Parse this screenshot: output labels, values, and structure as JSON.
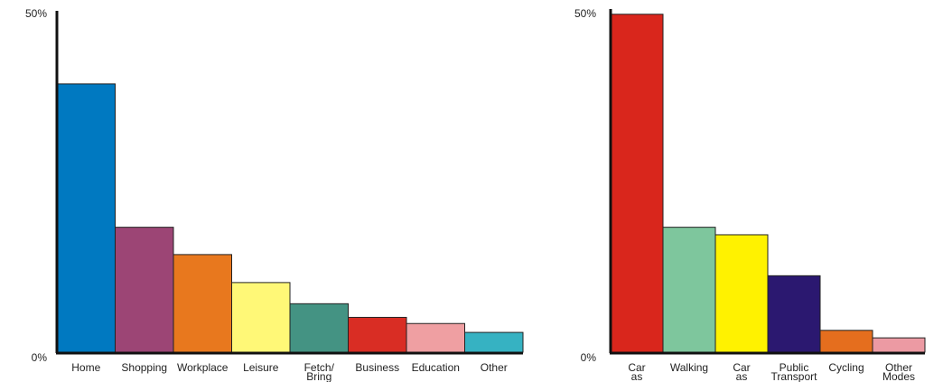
{
  "chart_data": [
    {
      "type": "bar",
      "categories": [
        "Home",
        "Shopping",
        "Workplace",
        "Leisure",
        "Fetch/\nBring",
        "Business",
        "Education",
        "Other"
      ],
      "values": [
        39.3,
        18.3,
        14.3,
        10.2,
        7.1,
        5.1,
        4.2,
        2.9
      ],
      "colors": [
        "#0079C1",
        "#9C4575",
        "#E8781E",
        "#FFF877",
        "#449383",
        "#D92D24",
        "#EF9FA2",
        "#36B2C2"
      ],
      "ylim": [
        0,
        50
      ],
      "yticks": [
        "0%",
        "50%"
      ],
      "grid": false
    },
    {
      "type": "bar",
      "categories": [
        "Car\nas",
        "Walking",
        "Car\nas",
        "Public\nTransport",
        "Cycling",
        "Other\nModes"
      ],
      "values": [
        49.5,
        18.3,
        17.2,
        11.2,
        3.2,
        2.1
      ],
      "colors": [
        "#D9261C",
        "#7EC69D",
        "#FFF200",
        "#2B1870",
        "#E56E1E",
        "#EC9AA3"
      ],
      "ylim": [
        0,
        50
      ],
      "yticks": [
        "0%",
        "50%"
      ],
      "grid": false
    }
  ]
}
